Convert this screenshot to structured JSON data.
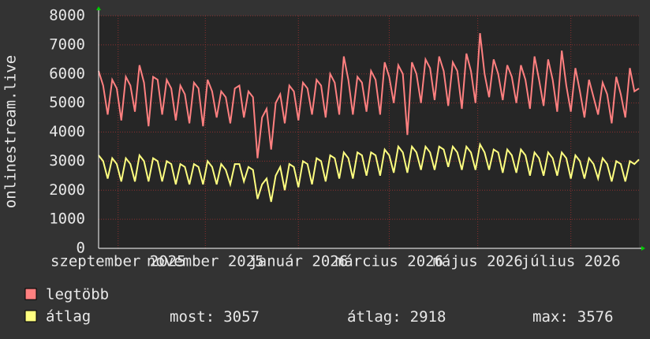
{
  "chart_data": {
    "type": "line",
    "y_label": "onlinestream.live",
    "ylim": [
      0,
      8000
    ],
    "yticks": [
      0,
      1000,
      2000,
      3000,
      4000,
      5000,
      6000,
      7000,
      8000
    ],
    "xlim": [
      0,
      119
    ],
    "xticks": [
      {
        "value": 4.3,
        "label": "szeptember 2025"
      },
      {
        "value": 23.5,
        "label": "november 2025"
      },
      {
        "value": 44,
        "label": "január 2026"
      },
      {
        "value": 64,
        "label": "március 2026"
      },
      {
        "value": 83.5,
        "label": "május 2026"
      },
      {
        "value": 104,
        "label": "július 2026"
      }
    ],
    "grid": true,
    "series": [
      {
        "name": "legtöbb",
        "color": "#ff8080",
        "values": [
          6100,
          5600,
          4600,
          5800,
          5500,
          4400,
          5900,
          5600,
          4700,
          6300,
          5700,
          4200,
          5900,
          5800,
          4600,
          5800,
          5500,
          4400,
          5600,
          5300,
          4300,
          5700,
          5500,
          4200,
          5800,
          5400,
          4500,
          5400,
          5200,
          4300,
          5500,
          5600,
          4500,
          5400,
          5200,
          3100,
          4500,
          4800,
          3400,
          5000,
          5300,
          4300,
          5600,
          5400,
          4400,
          5700,
          5500,
          4600,
          5800,
          5600,
          4500,
          6000,
          5700,
          4600,
          6600,
          5800,
          4600,
          5900,
          5700,
          4700,
          6100,
          5800,
          4600,
          6400,
          5900,
          5000,
          6300,
          6000,
          3900,
          6400,
          6000,
          5000,
          6500,
          6200,
          5100,
          6600,
          6100,
          4900,
          6400,
          6100,
          4800,
          6700,
          6100,
          5000,
          7400,
          6000,
          5200,
          6500,
          6000,
          5100,
          6300,
          5900,
          5000,
          6300,
          5800,
          4800,
          6600,
          5800,
          4900,
          6500,
          5800,
          4700,
          6800,
          5600,
          4700,
          6200,
          5400,
          4500,
          5800,
          5200,
          4600,
          5700,
          5300,
          4300,
          5900,
          5300,
          4500,
          6200,
          5400,
          5500
        ]
      },
      {
        "name": "átlag",
        "color": "#ffff80",
        "values": [
          3200,
          3000,
          2400,
          3100,
          2900,
          2300,
          3100,
          2900,
          2300,
          3200,
          3000,
          2300,
          3100,
          3000,
          2300,
          3000,
          2900,
          2200,
          2900,
          2800,
          2200,
          2900,
          2800,
          2200,
          3000,
          2800,
          2200,
          2900,
          2700,
          2200,
          2900,
          2900,
          2300,
          2800,
          2700,
          1700,
          2200,
          2400,
          1600,
          2500,
          2800,
          2000,
          2900,
          2800,
          2100,
          3000,
          2900,
          2200,
          3100,
          3000,
          2300,
          3200,
          3100,
          2400,
          3300,
          3100,
          2400,
          3300,
          3200,
          2500,
          3300,
          3200,
          2500,
          3400,
          3200,
          2600,
          3500,
          3300,
          2600,
          3500,
          3300,
          2700,
          3500,
          3300,
          2700,
          3500,
          3400,
          2800,
          3500,
          3300,
          2700,
          3500,
          3300,
          2700,
          3576,
          3300,
          2700,
          3400,
          3300,
          2600,
          3400,
          3200,
          2600,
          3400,
          3200,
          2500,
          3300,
          3100,
          2500,
          3300,
          3100,
          2500,
          3300,
          3100,
          2400,
          3200,
          3000,
          2400,
          3100,
          2900,
          2400,
          3100,
          2900,
          2300,
          3000,
          2900,
          2300,
          3000,
          2900,
          3057
        ]
      }
    ],
    "stats": [
      {
        "label": "most:",
        "value": 3057
      },
      {
        "label": "átlag:",
        "value": 2918
      },
      {
        "label": "max:",
        "value": 3576
      }
    ]
  }
}
